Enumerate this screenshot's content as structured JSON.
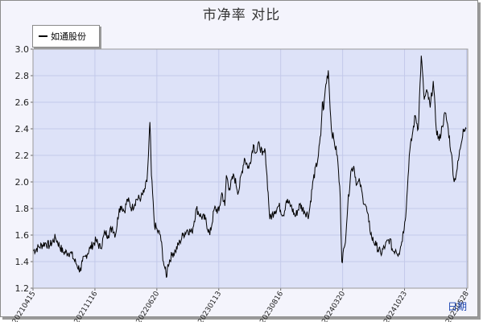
{
  "title": "市净率  对比",
  "legend": {
    "label": "如通股份",
    "color": "#000000"
  },
  "colors": {
    "plot_bg": "#dde2f8",
    "grid": "#c3c9ea",
    "line": "#000000",
    "frame_bg": "#f4f4fc",
    "axis_end_label": "#1a44b0"
  },
  "chart_data": {
    "type": "line",
    "title": "市净率  对比",
    "xlabel": "日期",
    "ylabel": "",
    "ylim": [
      1.2,
      3.0
    ],
    "yticks": [
      "1.2",
      "1.4",
      "1.6",
      "1.8",
      "2.0",
      "2.2",
      "2.4",
      "2.6",
      "2.8",
      "3.0"
    ],
    "xticks": [
      "20210415",
      "20211116",
      "20220620",
      "20230113",
      "20230816",
      "20240320",
      "20241023",
      "20250528"
    ],
    "grid": true,
    "legend_position": "top-left",
    "series": [
      {
        "name": "如通股份",
        "x": [
          0,
          8,
          16,
          22,
          30,
          40,
          50,
          58,
          64,
          66,
          70,
          76,
          84,
          90,
          96,
          100,
          106,
          110,
          115,
          118,
          122,
          126,
          132,
          138,
          144,
          148,
          152,
          154,
          156,
          158,
          162,
          166,
          170,
          174,
          176,
          178,
          180,
          186,
          190,
          196,
          200,
          206,
          212,
          218,
          224,
          230,
          236,
          242,
          248,
          252,
          256,
          258,
          262,
          268,
          274,
          282,
          288,
          294,
          298,
          302,
          306,
          310,
          316,
          322,
          328,
          334,
          338,
          344,
          350,
          356,
          362,
          368,
          374,
          380,
          384,
          386,
          388,
          390,
          394,
          398,
          402,
          406,
          410,
          412,
          416,
          420,
          424,
          428,
          432,
          436,
          440,
          444,
          448,
          452,
          458,
          464,
          470,
          476,
          480,
          484,
          488,
          492,
          496,
          498,
          502,
          506,
          510,
          514,
          518,
          522,
          526,
          530,
          534,
          538,
          542,
          546,
          550,
          554,
          558,
          562,
          566,
          570,
          574,
          578
        ],
        "values": [
          1.48,
          1.51,
          1.54,
          1.52,
          1.58,
          1.47,
          1.47,
          1.38,
          1.33,
          1.4,
          1.44,
          1.5,
          1.56,
          1.5,
          1.62,
          1.6,
          1.66,
          1.6,
          1.8,
          1.82,
          1.78,
          1.87,
          1.8,
          1.87,
          1.88,
          1.92,
          2.0,
          2.2,
          2.45,
          2.05,
          1.68,
          1.63,
          1.6,
          1.4,
          1.35,
          1.28,
          1.38,
          1.46,
          1.48,
          1.55,
          1.6,
          1.64,
          1.62,
          1.8,
          1.74,
          1.72,
          1.6,
          1.8,
          1.78,
          1.92,
          1.82,
          2.05,
          1.95,
          2.05,
          1.92,
          2.18,
          2.1,
          2.28,
          2.22,
          2.29,
          2.2,
          2.23,
          1.72,
          1.78,
          1.82,
          1.75,
          1.86,
          1.82,
          1.74,
          1.83,
          1.78,
          1.75,
          2.02,
          2.17,
          2.35,
          2.6,
          2.55,
          2.7,
          2.84,
          2.4,
          2.3,
          2.2,
          1.88,
          1.4,
          1.52,
          1.82,
          2.08,
          2.12,
          1.98,
          2.0,
          1.88,
          1.82,
          1.7,
          1.58,
          1.52,
          1.46,
          1.52,
          1.57,
          1.48,
          1.49,
          1.46,
          1.55,
          1.7,
          1.8,
          2.2,
          2.35,
          2.5,
          2.4,
          2.95,
          2.62,
          2.68,
          2.56,
          2.76,
          2.4,
          2.31,
          2.42,
          2.52,
          2.4,
          2.22,
          2.0,
          2.1,
          2.25,
          2.4,
          2.4
        ]
      }
    ]
  }
}
